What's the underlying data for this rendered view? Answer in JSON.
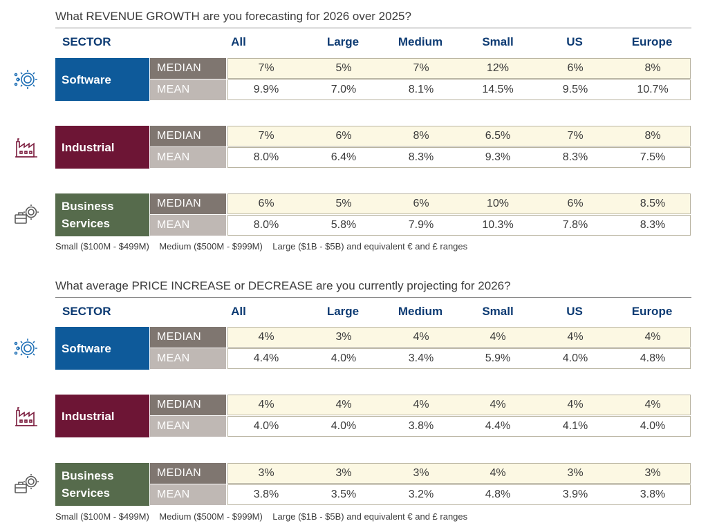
{
  "colors": {
    "software": "#0e5a9a",
    "industrial": "#6d1535",
    "business_services": "#566b4c",
    "header_text": "#0d3b73",
    "median_label_bg": "#7f7670",
    "mean_label_bg": "#bfb8b4",
    "median_row_bg": "#fcf8e3"
  },
  "columns": [
    "All",
    "Large",
    "Medium",
    "Small",
    "US",
    "Europe"
  ],
  "sector_header": "SECTOR",
  "median_label": "MEDIAN",
  "mean_label": "MEAN",
  "footnote": "Small ($100M - $499M)    Medium ($500M - $999M)    Large ($1B - $5B) and equivalent € and £ ranges",
  "revenue": {
    "title": "What REVENUE GROWTH are you forecasting for 2026 over 2025?",
    "sectors": [
      {
        "name": "Software",
        "icon": "gears-icon",
        "median": [
          "7%",
          "5%",
          "7%",
          "12%",
          "6%",
          "8%"
        ],
        "mean": [
          "9.9%",
          "7.0%",
          "8.1%",
          "14.5%",
          "9.5%",
          "10.7%"
        ]
      },
      {
        "name": "Industrial",
        "icon": "factory-icon",
        "median": [
          "7%",
          "6%",
          "8%",
          "6.5%",
          "7%",
          "8%"
        ],
        "mean": [
          "8.0%",
          "6.4%",
          "8.3%",
          "9.3%",
          "8.3%",
          "7.5%"
        ]
      },
      {
        "name": "Business Services",
        "icon": "briefcase-gear-icon",
        "median": [
          "6%",
          "5%",
          "6%",
          "10%",
          "6%",
          "8.5%"
        ],
        "mean": [
          "8.0%",
          "5.8%",
          "7.9%",
          "10.3%",
          "7.8%",
          "8.3%"
        ]
      }
    ]
  },
  "price": {
    "title": "What average PRICE INCREASE or DECREASE are you currently projecting for 2026?",
    "sectors": [
      {
        "name": "Software",
        "icon": "gears-icon",
        "median": [
          "4%",
          "3%",
          "4%",
          "4%",
          "4%",
          "4%"
        ],
        "mean": [
          "4.4%",
          "4.0%",
          "3.4%",
          "5.9%",
          "4.0%",
          "4.8%"
        ]
      },
      {
        "name": "Industrial",
        "icon": "factory-icon",
        "median": [
          "4%",
          "4%",
          "4%",
          "4%",
          "4%",
          "4%"
        ],
        "mean": [
          "4.0%",
          "4.0%",
          "3.8%",
          "4.4%",
          "4.1%",
          "4.0%"
        ]
      },
      {
        "name": "Business Services",
        "icon": "briefcase-gear-icon",
        "median": [
          "3%",
          "3%",
          "3%",
          "4%",
          "3%",
          "3%"
        ],
        "mean": [
          "3.8%",
          "3.5%",
          "3.2%",
          "4.8%",
          "3.9%",
          "3.8%"
        ]
      }
    ]
  }
}
